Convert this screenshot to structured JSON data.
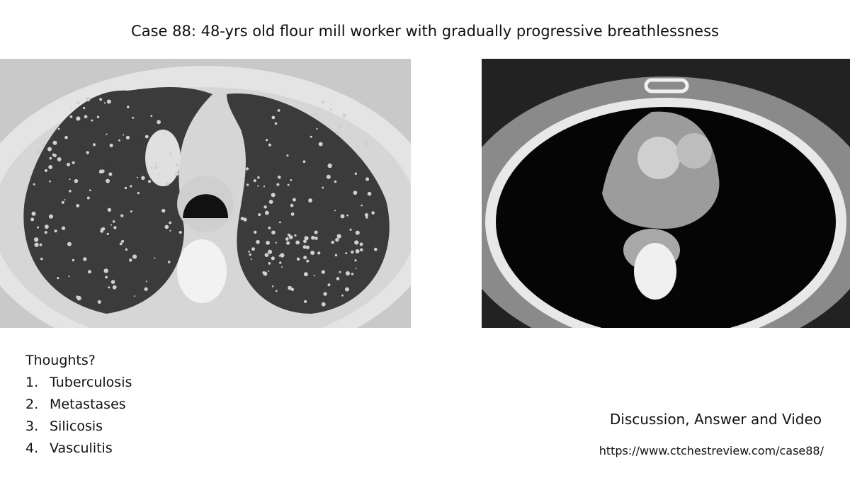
{
  "header": {
    "title": "Case 88: 48-yrs old flour mill worker with gradually progressive breathlessness"
  },
  "question": {
    "prompt": "Thoughts?",
    "options": [
      {
        "number": "1.",
        "text": "Tuberculosis"
      },
      {
        "number": "2.",
        "text": "Metastases"
      },
      {
        "number": "3.",
        "text": "Silicosis"
      },
      {
        "number": "4.",
        "text": "Vasculitis"
      }
    ]
  },
  "footer": {
    "heading": "Discussion, Answer and Video",
    "url": "https://www.ctchestreview.com/case88/"
  }
}
